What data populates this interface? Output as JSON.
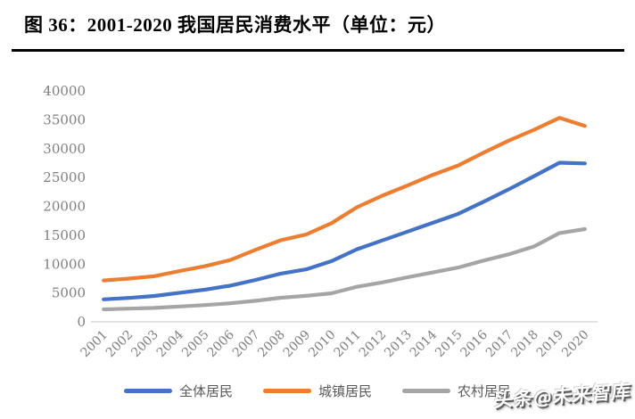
{
  "title": "图 36：2001-2020 我国居民消费水平（单位：元）",
  "watermark": "头条@未来智库",
  "legend": {
    "items": [
      {
        "label": "全体居民",
        "color": "#4472C4"
      },
      {
        "label": "城镇居民",
        "color": "#ED7D31"
      },
      {
        "label": "农村居民",
        "color": "#A5A5A5"
      }
    ]
  },
  "chart_data": {
    "type": "line",
    "title": "图 36：2001-2020 我国居民消费水平（单位：元）",
    "xlabel": "",
    "ylabel": "",
    "unit": "元",
    "ylim": [
      0,
      40000
    ],
    "ytick_step": 5000,
    "grid": false,
    "legend_position": "bottom",
    "axis_color": "#D9D9D9",
    "tick_label_color": "#7f7f7f",
    "categories": [
      2001,
      2002,
      2003,
      2004,
      2005,
      2006,
      2007,
      2008,
      2009,
      2010,
      2011,
      2012,
      2013,
      2014,
      2015,
      2016,
      2017,
      2018,
      2019,
      2020
    ],
    "series": [
      {
        "name": "全体居民",
        "color": "#4472C4",
        "values": [
          3887,
          4144,
          4475,
          5032,
          5573,
          6263,
          7255,
          8349,
          9098,
          10522,
          12570,
          14098,
          15632,
          17166,
          18705,
          20801,
          22969,
          25245,
          27563,
          27438
        ]
      },
      {
        "name": "城镇居民",
        "color": "#ED7D31",
        "values": [
          7161,
          7486,
          7908,
          8800,
          9644,
          10709,
          12477,
          14148,
          15128,
          17104,
          19853,
          21861,
          23609,
          25462,
          27088,
          29295,
          31395,
          33282,
          35334,
          33938
        ]
      },
      {
        "name": "农村居民",
        "color": "#A5A5A5",
        "values": [
          2156,
          2288,
          2411,
          2663,
          2899,
          3208,
          3640,
          4163,
          4506,
          4941,
          6067,
          6832,
          7728,
          8560,
          9409,
          10609,
          11704,
          13066,
          15382,
          16063
        ]
      }
    ]
  }
}
